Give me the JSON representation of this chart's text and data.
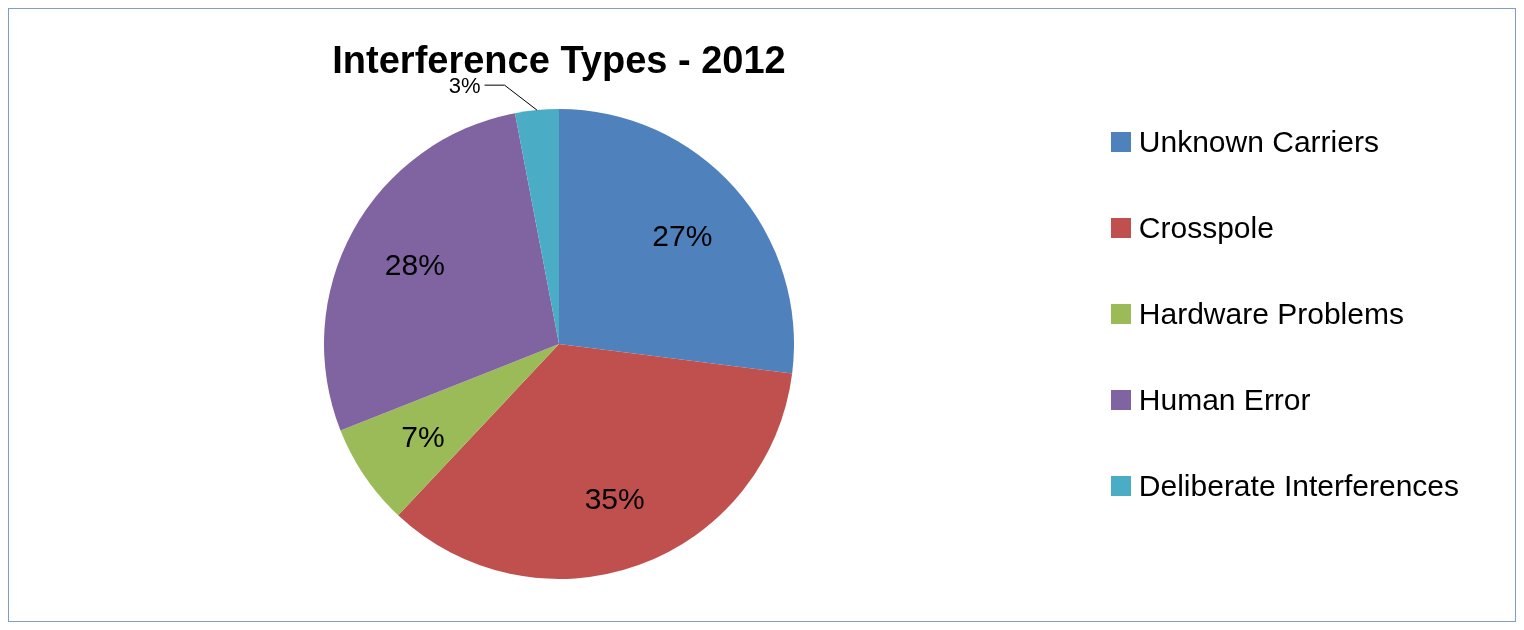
{
  "chart_data": {
    "type": "pie",
    "title": "Interference Types - 2012",
    "categories": [
      "Unknown Carriers",
      "Crosspole",
      "Hardware Problems",
      "Human Error",
      "Deliberate Interferences"
    ],
    "values": [
      27,
      35,
      7,
      28,
      3
    ],
    "colors": [
      "#4f81bd",
      "#c0504d",
      "#9bbb59",
      "#8064a2",
      "#4bacc6"
    ],
    "value_labels": [
      "27%",
      "35%",
      "7%",
      "28%",
      "3%"
    ],
    "legend": "right"
  }
}
